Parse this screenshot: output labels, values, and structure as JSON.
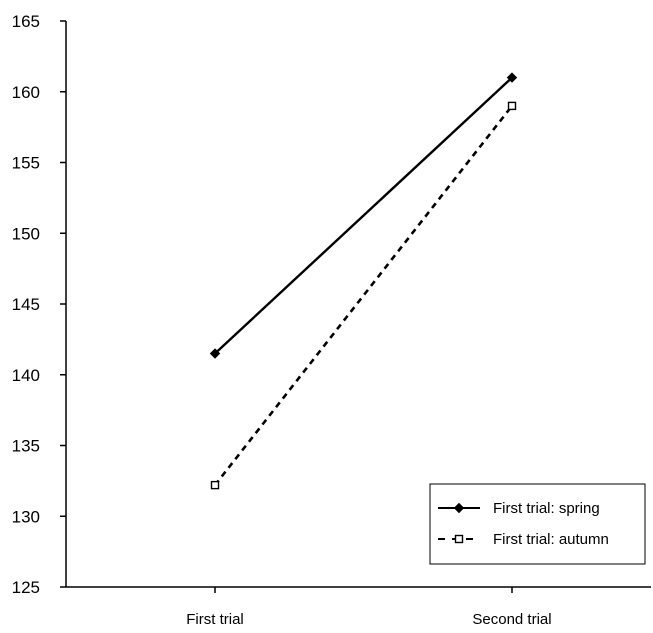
{
  "chart_data": {
    "type": "line",
    "title": "",
    "xlabel": "",
    "ylabel": "",
    "categories": [
      "First trial",
      "Second trial"
    ],
    "ylim": [
      125,
      165
    ],
    "yticks": [
      125,
      130,
      135,
      140,
      145,
      150,
      155,
      160,
      165
    ],
    "grid": false,
    "legend_position": "bottom-right",
    "series": [
      {
        "name": "First trial: spring",
        "values": [
          141.5,
          161
        ],
        "line_style": "solid",
        "marker": "diamond",
        "color": "#000000"
      },
      {
        "name": "First trial: autumn",
        "values": [
          132.2,
          159
        ],
        "line_style": "dashed",
        "marker": "hollow-square",
        "color": "#000000"
      }
    ]
  }
}
